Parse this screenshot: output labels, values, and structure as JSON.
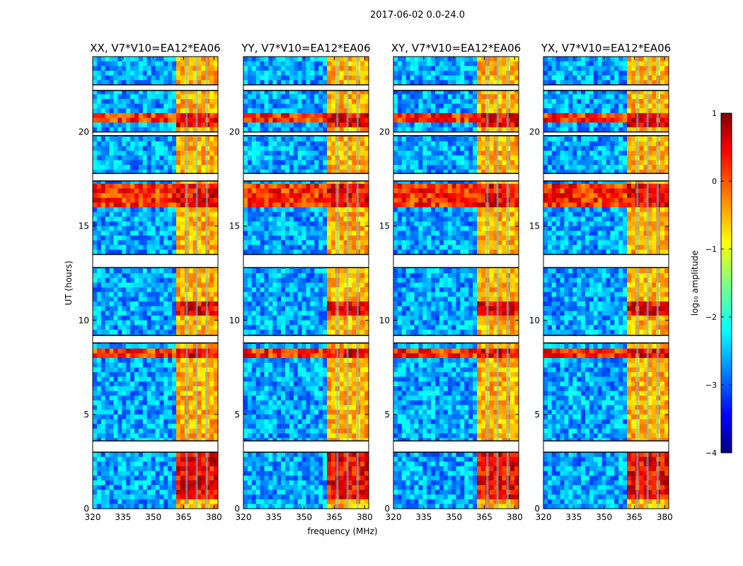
{
  "figure": {
    "title": "2017-06-02 0.0-24.0",
    "xlabel": "frequency (MHz)",
    "ylabel": "UT (hours)"
  },
  "colorbar": {
    "label": "log₁₀ amplitude",
    "ticks": [
      "1",
      "0",
      "−1",
      "−2",
      "−3",
      "−4"
    ],
    "range": [
      -4,
      1
    ],
    "colormap": "jet"
  },
  "chart_data": [
    {
      "type": "heatmap",
      "title": "XX, V7*V10=EA12*EA06",
      "xlabel": "frequency (MHz)",
      "ylabel": "UT (hours)",
      "xlim": [
        320,
        382
      ],
      "ylim": [
        0,
        24
      ],
      "xticks": [
        "320",
        "335",
        "350",
        "365",
        "380"
      ],
      "yticks": [
        "0",
        "5",
        "10",
        "15",
        "20"
      ],
      "z_scale": "log10 amplitude",
      "rfi_band_mhz": [
        362,
        381
      ],
      "strong_rfi_hours": [
        [
          0.5,
          3.0
        ],
        [
          8.1,
          8.4
        ],
        [
          10.2,
          10.9
        ],
        [
          15.9,
          17.2
        ],
        [
          20.2,
          21.1
        ]
      ],
      "flagged_hours": [
        [
          3.0,
          3.6
        ],
        [
          8.8,
          9.2
        ],
        [
          12.8,
          13.5
        ],
        [
          17.4,
          17.8
        ],
        [
          19.8,
          20.0
        ],
        [
          22.2,
          22.5
        ]
      ]
    },
    {
      "type": "heatmap",
      "title": "YY, V7*V10=EA12*EA06",
      "xlabel": "frequency (MHz)",
      "ylabel": "UT (hours)",
      "xlim": [
        320,
        382
      ],
      "ylim": [
        0,
        24
      ],
      "xticks": [
        "320",
        "335",
        "350",
        "365",
        "380"
      ],
      "yticks": [
        "0",
        "5",
        "10",
        "15",
        "20"
      ],
      "z_scale": "log10 amplitude",
      "rfi_band_mhz": [
        362,
        381
      ],
      "strong_rfi_hours": [
        [
          0.5,
          3.0
        ],
        [
          8.1,
          8.4
        ],
        [
          10.2,
          10.9
        ],
        [
          15.9,
          17.2
        ],
        [
          20.2,
          21.1
        ]
      ],
      "flagged_hours": [
        [
          3.0,
          3.6
        ],
        [
          8.8,
          9.2
        ],
        [
          12.8,
          13.5
        ],
        [
          17.4,
          17.8
        ],
        [
          19.8,
          20.0
        ],
        [
          22.2,
          22.5
        ]
      ]
    },
    {
      "type": "heatmap",
      "title": "XY, V7*V10=EA12*EA06",
      "xlabel": "frequency (MHz)",
      "ylabel": "UT (hours)",
      "xlim": [
        320,
        382
      ],
      "ylim": [
        0,
        24
      ],
      "xticks": [
        "320",
        "335",
        "350",
        "365",
        "380"
      ],
      "yticks": [
        "0",
        "5",
        "10",
        "15",
        "20"
      ],
      "z_scale": "log10 amplitude",
      "rfi_band_mhz": [
        362,
        381
      ],
      "strong_rfi_hours": [
        [
          0.5,
          3.0
        ],
        [
          8.1,
          8.4
        ],
        [
          10.2,
          10.9
        ],
        [
          15.9,
          17.2
        ],
        [
          20.2,
          21.1
        ]
      ],
      "flagged_hours": [
        [
          3.0,
          3.6
        ],
        [
          8.8,
          9.2
        ],
        [
          12.8,
          13.5
        ],
        [
          17.4,
          17.8
        ],
        [
          19.8,
          20.0
        ],
        [
          22.2,
          22.5
        ]
      ]
    },
    {
      "type": "heatmap",
      "title": "YX, V7*V10=EA12*EA06",
      "xlabel": "frequency (MHz)",
      "ylabel": "UT (hours)",
      "xlim": [
        320,
        382
      ],
      "ylim": [
        0,
        24
      ],
      "xticks": [
        "320",
        "335",
        "350",
        "365",
        "380"
      ],
      "yticks": [
        "0",
        "5",
        "10",
        "15",
        "20"
      ],
      "z_scale": "log10 amplitude",
      "rfi_band_mhz": [
        362,
        381
      ],
      "strong_rfi_hours": [
        [
          0.5,
          3.0
        ],
        [
          8.1,
          8.4
        ],
        [
          10.2,
          10.9
        ],
        [
          15.9,
          17.2
        ],
        [
          20.2,
          21.1
        ]
      ],
      "flagged_hours": [
        [
          3.0,
          3.6
        ],
        [
          8.8,
          9.2
        ],
        [
          12.8,
          13.5
        ],
        [
          17.4,
          17.8
        ],
        [
          19.8,
          20.0
        ],
        [
          22.2,
          22.5
        ]
      ]
    }
  ]
}
